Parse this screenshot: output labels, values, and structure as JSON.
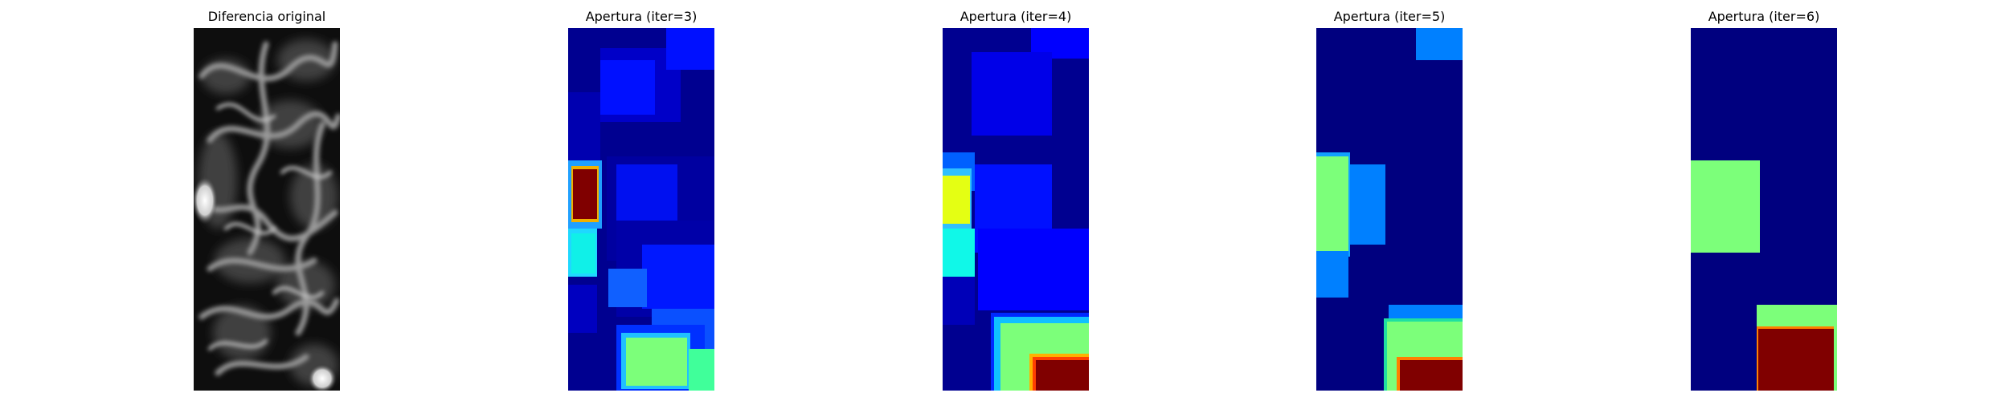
{
  "figure": {
    "panels": [
      {
        "title": "Diferencia original",
        "image": "grayscale difference image",
        "colormap": "gray"
      },
      {
        "title": "Apertura (iter=3)",
        "image": "morphological opening result",
        "colormap": "jet"
      },
      {
        "title": "Apertura (iter=4)",
        "image": "morphological opening result",
        "colormap": "jet"
      },
      {
        "title": "Apertura (iter=5)",
        "image": "morphological opening result",
        "colormap": "jet"
      },
      {
        "title": "Apertura (iter=6)",
        "image": "morphological opening result",
        "colormap": "jet"
      }
    ],
    "colors": {
      "jet_dark_blue": "#00007f",
      "jet_blue": "#0000ff",
      "jet_light_blue": "#0080ff",
      "jet_cyan": "#17ffe0",
      "jet_green": "#7cff7a",
      "jet_yellow": "#e4ff13",
      "jet_orange": "#ff7f00",
      "jet_dark_red": "#800000"
    }
  }
}
